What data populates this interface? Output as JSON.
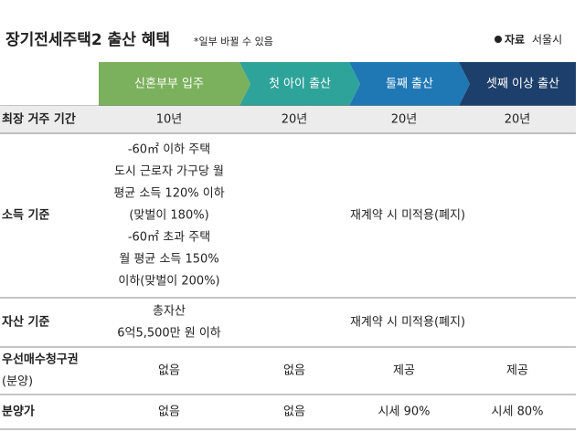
{
  "header": {
    "title": "장기전세주택2 출산 혜택",
    "note": "*일부 바뀔 수 있음",
    "source": {
      "label": "자료",
      "value": "서울시"
    }
  },
  "table": {
    "columns": [
      "신혼부부 입주",
      "첫 아이 출산",
      "둘째 출산",
      "셋째 이상 출산"
    ],
    "rows": [
      {
        "label": [
          "최장 거주 기간"
        ],
        "cells": [
          [
            "10년"
          ],
          [
            "20년"
          ],
          [
            "20년"
          ],
          [
            "20년"
          ]
        ]
      },
      {
        "label": [
          "소득 기준"
        ],
        "cells": [
          [
            "-60㎡ 이하 주택",
            "도시 근로자 가구당 월",
            "평균 소득 120% 이하",
            "(맞벌이 180%)",
            "-60㎡ 초과 주택",
            "월 평균 소득 150%",
            "이하(맞벌이 200%)"
          ],
          [
            "재계약 시 미적용(폐지)"
          ]
        ]
      },
      {
        "label": [
          "자산 기준"
        ],
        "cells": [
          [
            "총자산",
            "6억5,500만 원 이하"
          ],
          [
            "재계약 시 미적용(폐지)"
          ]
        ]
      },
      {
        "label": [
          "우선매수청구권",
          "(분양)"
        ],
        "cells": [
          [
            "없음"
          ],
          [
            "없음"
          ],
          [
            "제공"
          ],
          [
            "제공"
          ]
        ]
      },
      {
        "label": [
          "분양가"
        ],
        "cells": [
          [
            "없음"
          ],
          [
            "없음"
          ],
          [
            "시세 90%"
          ],
          [
            "시세 80%"
          ]
        ]
      }
    ]
  }
}
